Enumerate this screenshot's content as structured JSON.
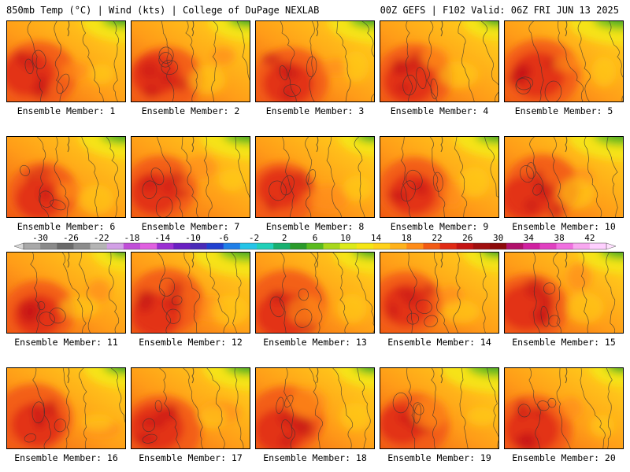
{
  "header": {
    "title_left": "850mb Temp (°C) | Wind (kts) | College of DuPage NEXLAB",
    "title_right": "00Z GEFS | F102 Valid: 06Z FRI JUN 13 2025"
  },
  "colorbar": {
    "ticks": [
      "-30",
      "-26",
      "-22",
      "-18",
      "-14",
      "-10",
      "-6",
      "-2",
      "2",
      "6",
      "10",
      "14",
      "18",
      "22",
      "26",
      "30",
      "34",
      "38",
      "42"
    ],
    "colors": [
      "#a8a8a8",
      "#8a8a8a",
      "#6a6a6a",
      "#8c8c8c",
      "#b4b4b4",
      "#d2a0e6",
      "#c04ed8",
      "#e060e0",
      "#9b2fd2",
      "#6a1fc2",
      "#4a2ab8",
      "#2040d0",
      "#1f7fe8",
      "#24c4e8",
      "#20d0b8",
      "#18b070",
      "#2a9a2a",
      "#5abb1e",
      "#a8d81c",
      "#dcea18",
      "#f5e614",
      "#ffd21a",
      "#ffb21a",
      "#ff8c18",
      "#f25a14",
      "#e02a14",
      "#c41414",
      "#a01010",
      "#8c0a0a",
      "#b0106a",
      "#d020a0",
      "#e040c0",
      "#f070e0",
      "#f8a8f0",
      "#ffd0ff"
    ]
  },
  "panels": [
    {
      "label": "Ensemble Member: 1",
      "heat": 0.75,
      "north": 0.35
    },
    {
      "label": "Ensemble Member: 2",
      "heat": 0.65,
      "north": 0.3
    },
    {
      "label": "Ensemble Member: 3",
      "heat": 0.7,
      "north": 0.4
    },
    {
      "label": "Ensemble Member: 4",
      "heat": 0.72,
      "north": 0.2
    },
    {
      "label": "Ensemble Member: 5",
      "heat": 0.8,
      "north": 0.55
    },
    {
      "label": "Ensemble Member: 6",
      "heat": 0.55,
      "north": 0.4
    },
    {
      "label": "Ensemble Member: 7",
      "heat": 0.62,
      "north": 0.45
    },
    {
      "label": "Ensemble Member: 8",
      "heat": 0.55,
      "north": 0.2
    },
    {
      "label": "Ensemble Member: 9",
      "heat": 0.6,
      "north": 0.35
    },
    {
      "label": "Ensemble Member: 10",
      "heat": 0.7,
      "north": 0.55
    },
    {
      "label": "Ensemble Member: 11",
      "heat": 0.62,
      "north": 0.15
    },
    {
      "label": "Ensemble Member: 12",
      "heat": 0.7,
      "north": 0.6
    },
    {
      "label": "Ensemble Member: 13",
      "heat": 0.8,
      "north": 0.3
    },
    {
      "label": "Ensemble Member: 14",
      "heat": 0.62,
      "north": 0.2
    },
    {
      "label": "Ensemble Member: 15",
      "heat": 0.78,
      "north": 0.35
    },
    {
      "label": "Ensemble Member: 16",
      "heat": 0.75,
      "north": 0.3
    },
    {
      "label": "Ensemble Member: 17",
      "heat": 0.82,
      "north": 0.4
    },
    {
      "label": "Ensemble Member: 18",
      "heat": 0.72,
      "north": 0.25
    },
    {
      "label": "Ensemble Member: 19",
      "heat": 0.6,
      "north": 0.6
    },
    {
      "label": "Ensemble Member: 20",
      "heat": 0.8,
      "north": 0.15
    }
  ]
}
